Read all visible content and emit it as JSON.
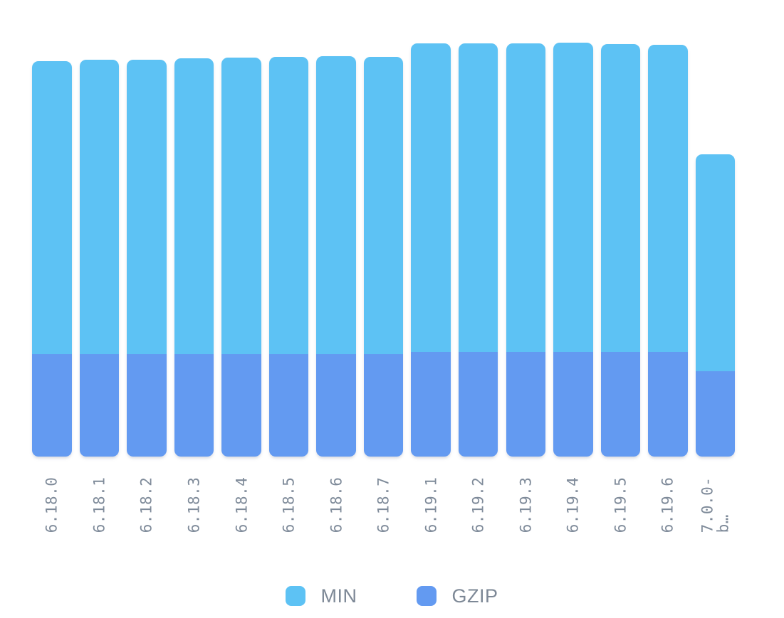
{
  "chart_data": {
    "type": "bar",
    "stacked": true,
    "orientation": "vertical",
    "title": "",
    "xlabel": "",
    "ylabel": "",
    "gridlines": false,
    "value_axis_visible": false,
    "categories": [
      "6.18.0",
      "6.18.1",
      "6.18.2",
      "6.18.3",
      "6.18.4",
      "6.18.5",
      "6.18.6",
      "6.18.7",
      "6.19.1",
      "6.19.2",
      "6.19.3",
      "6.19.4",
      "6.19.5",
      "6.19.6",
      "7.0.0-b…"
    ],
    "x_tick_display": [
      "6.18.0",
      "6.18.1",
      "6.18.2",
      "6.18.3",
      "6.18.4",
      "6.18.5",
      "6.18.6",
      "6.18.7",
      "6.19.1",
      "6.19.2",
      "6.19.3",
      "6.19.4",
      "6.19.5",
      "6.19.6",
      "7.0.0-\nb…"
    ],
    "units": "relative-px",
    "series": [
      {
        "name": "MIN",
        "color": "#5dc2f4",
        "values": [
          411.5,
          414,
          414,
          415.5,
          416.5,
          418,
          419,
          418,
          433.5,
          433.5,
          434,
          435,
          432.5,
          431.5,
          305
        ]
      },
      {
        "name": "GZIP",
        "color": "#639af1",
        "values": [
          144.5,
          144.5,
          144.5,
          144.5,
          144.5,
          144.5,
          144.5,
          144.5,
          147.5,
          147.5,
          147.5,
          147.5,
          147.5,
          147.5,
          120
        ]
      }
    ],
    "legend": {
      "position": "bottom",
      "entries": [
        "MIN",
        "GZIP"
      ]
    }
  },
  "styles": {
    "background": "#ffffff",
    "min_color": "#5dc2f4",
    "gzip_color": "#639af1",
    "tick_label_color": "#7e8a99",
    "legend_text_color": "#7d8896"
  }
}
